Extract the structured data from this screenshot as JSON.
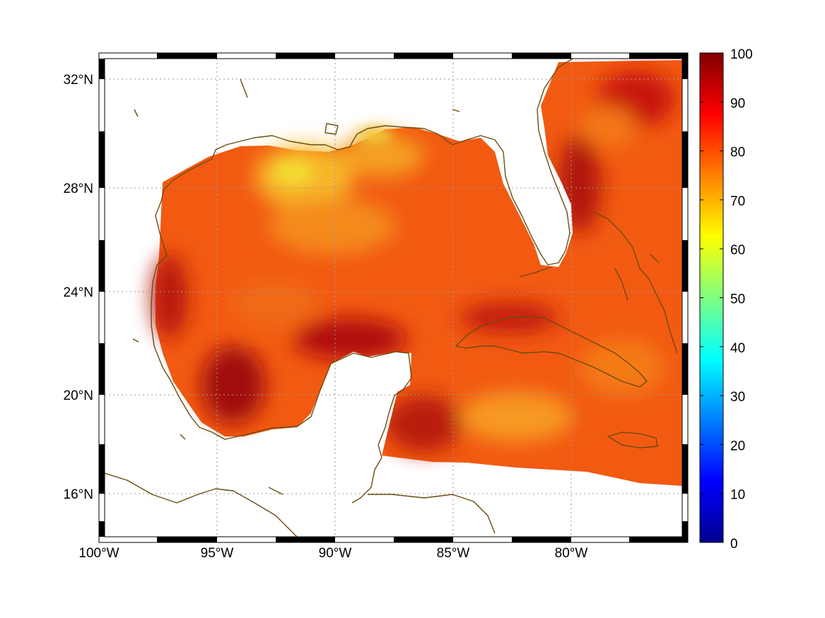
{
  "map": {
    "projection": "equirectangular",
    "lon_range": [
      -100,
      -75
    ],
    "lat_range": [
      14.2,
      32.9
    ],
    "lon_ticks": [
      {
        "value": -100,
        "label": "100°W"
      },
      {
        "value": -95,
        "label": "95°W"
      },
      {
        "value": -90,
        "label": "90°W"
      },
      {
        "value": -85,
        "label": "85°W"
      },
      {
        "value": -80,
        "label": "80°W"
      }
    ],
    "lat_ticks": [
      {
        "value": 32,
        "label": "32°N"
      },
      {
        "value": 28,
        "label": "28°N"
      },
      {
        "value": 24,
        "label": "24°N"
      },
      {
        "value": 20,
        "label": "20°N"
      },
      {
        "value": 16,
        "label": "16°N"
      }
    ],
    "grid": true,
    "coastline_color": "#6b4c0f",
    "frame_style": "black-white checkered border",
    "field_value_typical": 85
  },
  "colorbar": {
    "colormap": "jet",
    "range": [
      0,
      100
    ],
    "ticks": [
      "0",
      "10",
      "20",
      "30",
      "40",
      "50",
      "60",
      "70",
      "80",
      "90",
      "100"
    ]
  }
}
